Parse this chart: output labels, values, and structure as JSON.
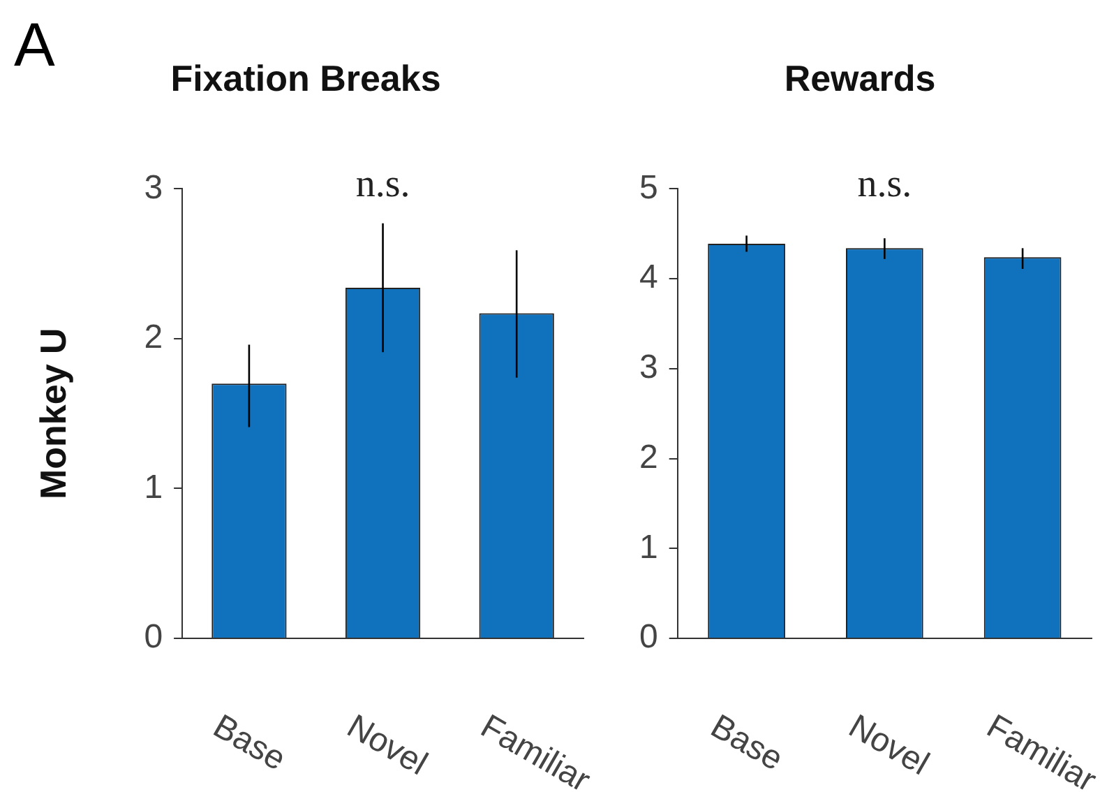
{
  "chart_data": [
    {
      "type": "bar",
      "title": "Fixation Breaks",
      "ylabel": "Monkey U",
      "categories": [
        "Base",
        "Novel",
        "Familiar"
      ],
      "values": [
        1.7,
        2.34,
        2.17
      ],
      "color": "#1071bd",
      "errors": [
        [
          1.41,
          1.96
        ],
        [
          1.91,
          2.77
        ],
        [
          1.74,
          2.59
        ]
      ],
      "ylim": [
        0,
        3
      ],
      "yticks": [
        0,
        1,
        2,
        3
      ],
      "grid": false,
      "legend": false,
      "annotations": [
        "A",
        "n.s."
      ]
    },
    {
      "type": "bar",
      "title": "Rewards",
      "categories": [
        "Base",
        "Novel",
        "Familiar"
      ],
      "values": [
        4.39,
        4.34,
        4.24
      ],
      "color": "#1071bd",
      "errors": [
        [
          4.3,
          4.48
        ],
        [
          4.22,
          4.45
        ],
        [
          4.11,
          4.34
        ]
      ],
      "ylim": [
        0,
        5
      ],
      "yticks": [
        0,
        1,
        2,
        3,
        4,
        5
      ],
      "grid": false,
      "legend": false,
      "annotations": [
        "n.s."
      ]
    }
  ]
}
